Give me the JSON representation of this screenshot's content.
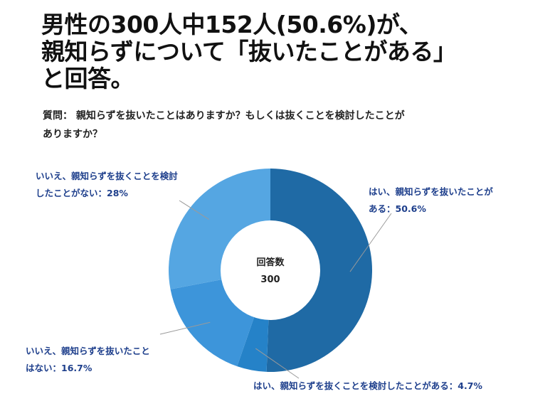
{
  "headline": [
    "男性の300人中152人(50.6%)が、",
    "親知らずについて「抜いたことがある」",
    "と回答。"
  ],
  "question": [
    "質問： 親知らずを抜いたことはありますか？もしくは抜くことを検討したことが",
    "ありますか？"
  ],
  "chart_data": {
    "type": "pie",
    "donut": true,
    "center_label": "回答数",
    "center_value": "300",
    "series": [
      {
        "name": "はい、親知らずを抜いたことがある",
        "label_lines": [
          "はい、親知らずを抜いたことが",
          "ある：50.6%"
        ],
        "value": 50.6,
        "color": "#1f6aa5"
      },
      {
        "name": "はい、親知らずを抜くことを検討したことがある",
        "label_lines": [
          "はい、親知らずを抜くことを検討したことがある：4.7%"
        ],
        "value": 4.7,
        "color": "#2582c8"
      },
      {
        "name": "いいえ、親知らずを抜いたことはない",
        "label_lines": [
          "いいえ、親知らずを抜いたこと",
          "はない：16.7%"
        ],
        "value": 16.7,
        "color": "#3d95da"
      },
      {
        "name": "いいえ、親知らずを抜くことを検討したことがない",
        "label_lines": [
          "いいえ、親知らずを抜くことを検討",
          "したことがない：28%"
        ],
        "value": 28,
        "color": "#55a6e2"
      }
    ]
  }
}
